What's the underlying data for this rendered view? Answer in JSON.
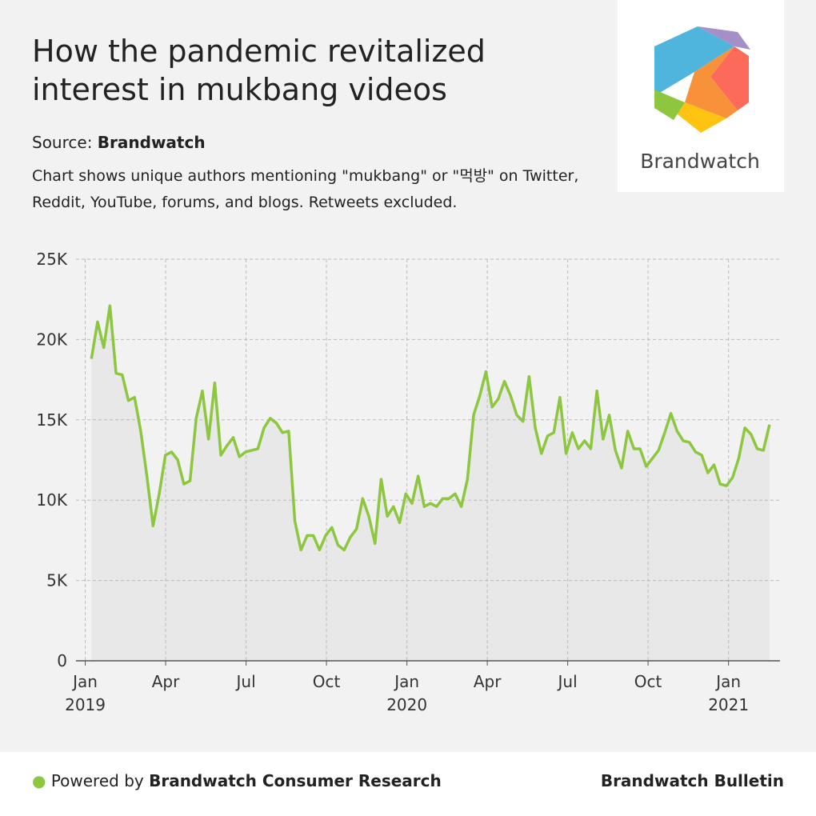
{
  "header": {
    "title": "How the pandemic revitalized interest in mukbang videos",
    "source_label": "Source:",
    "source": "Brandwatch",
    "description": "Chart shows unique authors mentioning \"mukbang\" or \"먹방\" on Twitter, Reddit, YouTube, forums, and blogs. Retweets excluded.",
    "logo_text": "Brandwatch"
  },
  "chart_data": {
    "type": "line",
    "color": "#8dc63f",
    "area_color": "#e8e8e8",
    "grid": true,
    "x": [
      1,
      2,
      3,
      4,
      5,
      6,
      7,
      8,
      9,
      10,
      11,
      12,
      13,
      14,
      15,
      16,
      17,
      18,
      19,
      20,
      21,
      22,
      23,
      24,
      25,
      26,
      27,
      28,
      29,
      30,
      31,
      32,
      33,
      34,
      35,
      36,
      37,
      38,
      39,
      40,
      41,
      42,
      43,
      44,
      45,
      46,
      47,
      48,
      49,
      50,
      51,
      52,
      53,
      54,
      55,
      56,
      57,
      58,
      59,
      60,
      61,
      62,
      63,
      64,
      65,
      66,
      67,
      68,
      69,
      70,
      71,
      72,
      73,
      74,
      75,
      76,
      77,
      78,
      79,
      80,
      81,
      82,
      83,
      84,
      85,
      86,
      87,
      88,
      89,
      90,
      91,
      92,
      93,
      94,
      95,
      96,
      97,
      98,
      99,
      100,
      101,
      102,
      103,
      104,
      105,
      106,
      107,
      108,
      109,
      110,
      111
    ],
    "values": [
      18800,
      21100,
      19500,
      22100,
      17900,
      17800,
      16200,
      16400,
      14300,
      11500,
      8400,
      10400,
      12800,
      13000,
      12500,
      11000,
      11200,
      15100,
      16800,
      13800,
      17300,
      12800,
      13400,
      13900,
      12700,
      13000,
      13100,
      13200,
      14500,
      15100,
      14800,
      14200,
      14300,
      8700,
      6900,
      7800,
      7800,
      6900,
      7800,
      8300,
      7200,
      6900,
      7700,
      8200,
      10100,
      9000,
      7300,
      11300,
      9000,
      9600,
      8600,
      10400,
      9800,
      11500,
      9600,
      9800,
      9600,
      10100,
      10100,
      10400,
      9600,
      11300,
      15300,
      16500,
      18000,
      15800,
      16300,
      17400,
      16500,
      15300,
      14900,
      17700,
      14500,
      12900,
      14000,
      14200,
      16400,
      12900,
      14200,
      13200,
      13700,
      13200,
      16800,
      13800,
      15300,
      13100,
      12000,
      14300,
      13200,
      13200,
      12100,
      12600,
      13100,
      14200,
      15400,
      14300,
      13700,
      13600,
      13000,
      12800,
      11700,
      12200,
      11000,
      10900,
      11400,
      12600,
      14500,
      14100,
      13200,
      13100,
      14700
    ],
    "xlim": [
      -1.5,
      112.7
    ],
    "xticks": [
      {
        "value": 0,
        "label": "Jan 2019"
      },
      {
        "value": 13.04,
        "label": "Apr"
      },
      {
        "value": 26.09,
        "label": "Jul"
      },
      {
        "value": 39.13,
        "label": "Oct"
      },
      {
        "value": 52.18,
        "label": "Jan 2020"
      },
      {
        "value": 65.22,
        "label": "Apr"
      },
      {
        "value": 78.26,
        "label": "Jul"
      },
      {
        "value": 91.3,
        "label": "Oct"
      },
      {
        "value": 104.35,
        "label": "Jan 2021"
      }
    ],
    "ylim": [
      0,
      25000
    ],
    "yticks": [
      0,
      {
        "value": 5000,
        "label": "5K"
      },
      {
        "value": 10000,
        "label": "10K"
      },
      {
        "value": 15000,
        "label": "15K"
      },
      {
        "value": 20000,
        "label": "20K"
      },
      {
        "value": 25000,
        "label": "25K"
      }
    ]
  },
  "footer": {
    "powered_label": "Powered by",
    "powered": "Brandwatch Consumer Research",
    "right": "Brandwatch Bulletin"
  }
}
